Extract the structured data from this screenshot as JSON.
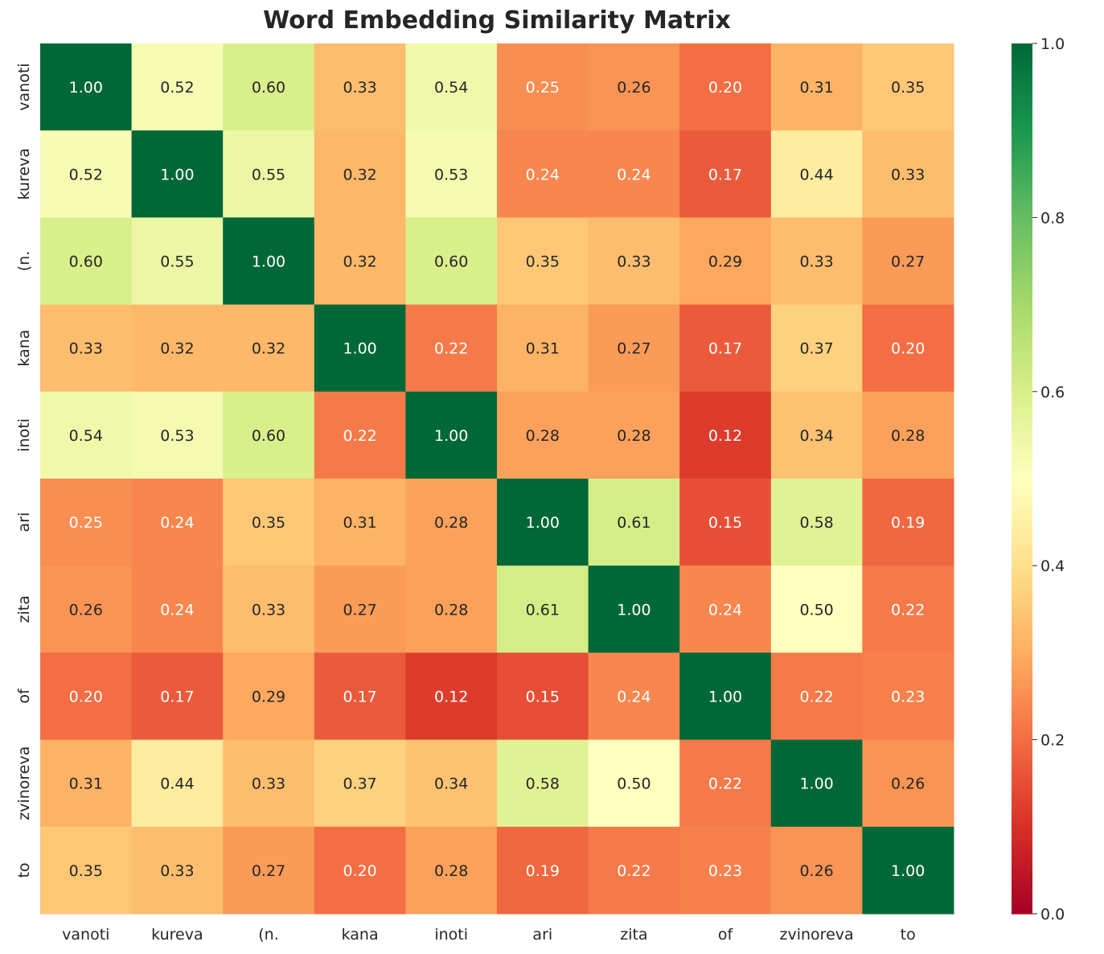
{
  "chart_data": {
    "type": "heatmap",
    "title": "Word Embedding Similarity Matrix",
    "labels": [
      "vanoti",
      "kureva",
      "(n.",
      "kana",
      "inoti",
      "ari",
      "zita",
      "of",
      "zvinoreva",
      "to"
    ],
    "values": [
      [
        1.0,
        0.52,
        0.6,
        0.33,
        0.54,
        0.25,
        0.26,
        0.2,
        0.31,
        0.35
      ],
      [
        0.52,
        1.0,
        0.55,
        0.32,
        0.53,
        0.24,
        0.24,
        0.17,
        0.44,
        0.33
      ],
      [
        0.6,
        0.55,
        1.0,
        0.32,
        0.6,
        0.35,
        0.33,
        0.29,
        0.33,
        0.27
      ],
      [
        0.33,
        0.32,
        0.32,
        1.0,
        0.22,
        0.31,
        0.27,
        0.17,
        0.37,
        0.2
      ],
      [
        0.54,
        0.53,
        0.6,
        0.22,
        1.0,
        0.28,
        0.28,
        0.12,
        0.34,
        0.28
      ],
      [
        0.25,
        0.24,
        0.35,
        0.31,
        0.28,
        1.0,
        0.61,
        0.15,
        0.58,
        0.19
      ],
      [
        0.26,
        0.24,
        0.33,
        0.27,
        0.28,
        0.61,
        1.0,
        0.24,
        0.5,
        0.22
      ],
      [
        0.2,
        0.17,
        0.29,
        0.17,
        0.12,
        0.15,
        0.24,
        1.0,
        0.22,
        0.23
      ],
      [
        0.31,
        0.44,
        0.33,
        0.37,
        0.34,
        0.58,
        0.5,
        0.22,
        1.0,
        0.26
      ],
      [
        0.35,
        0.33,
        0.27,
        0.2,
        0.28,
        0.19,
        0.22,
        0.23,
        0.26,
        1.0
      ]
    ],
    "colormap": "RdYlGn",
    "colorbar": {
      "range": [
        0.0,
        1.0
      ],
      "ticks": [
        "0.0",
        "0.2",
        "0.4",
        "0.6",
        "0.8",
        "1.0"
      ]
    }
  }
}
